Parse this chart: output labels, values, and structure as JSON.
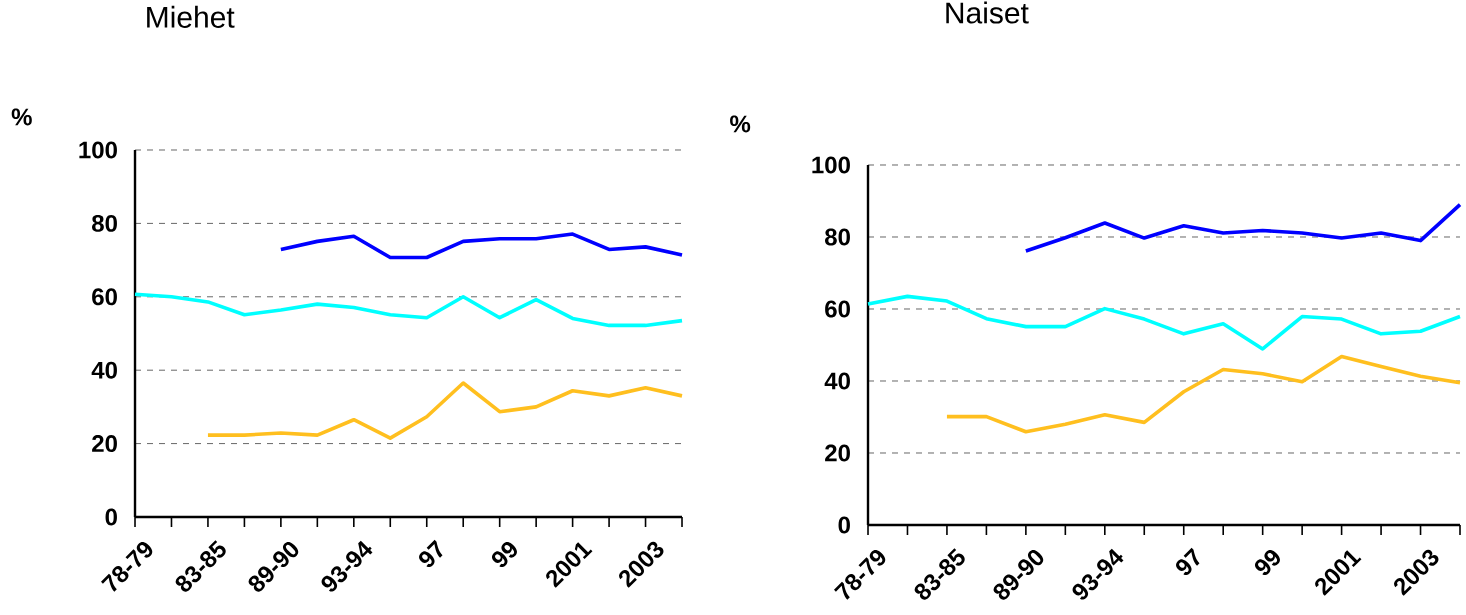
{
  "chart_data": [
    {
      "type": "line",
      "title": "Miehet",
      "ylabel": "%",
      "categories": [
        "78-79",
        null,
        "83-85",
        null,
        "89-90",
        null,
        "93-94",
        null,
        "97",
        null,
        "99",
        null,
        "2001",
        null,
        "2003",
        null
      ],
      "ylim": [
        0,
        100
      ],
      "yticks": [
        0,
        20,
        40,
        60,
        80,
        100
      ],
      "grid": "y",
      "series": [
        {
          "color": "#0000ff",
          "values": [
            null,
            null,
            null,
            null,
            72.9,
            75.1,
            76.5,
            70.7,
            70.7,
            75.1,
            75.8,
            75.8,
            77.1,
            72.9,
            73.6,
            71.4
          ]
        },
        {
          "color": "#00ffff",
          "values": [
            60.7,
            60.0,
            58.6,
            55.1,
            56.4,
            58.0,
            57.1,
            55.1,
            54.3,
            60.0,
            54.3,
            59.2,
            54.1,
            52.2,
            52.2,
            53.5
          ]
        },
        {
          "color": "#ffbf1f",
          "values": [
            null,
            null,
            22.3,
            22.3,
            22.9,
            22.3,
            26.5,
            21.5,
            27.3,
            36.5,
            28.7,
            30.0,
            34.4,
            33.0,
            35.2,
            33.0
          ]
        }
      ]
    },
    {
      "type": "line",
      "title": "Naiset",
      "ylabel": "%",
      "categories": [
        "78-79",
        null,
        "83-85",
        null,
        "89-90",
        null,
        "93-94",
        null,
        "97",
        null,
        "99",
        null,
        "2001",
        null,
        "2003",
        null
      ],
      "ylim": [
        0,
        100
      ],
      "yticks": [
        0,
        20,
        40,
        60,
        80,
        100
      ],
      "grid": "y",
      "series": [
        {
          "color": "#0000ff",
          "values": [
            null,
            null,
            null,
            null,
            76.1,
            79.8,
            83.9,
            79.7,
            83.1,
            81.1,
            81.8,
            81.1,
            79.7,
            81.1,
            79.0,
            89.0
          ]
        },
        {
          "color": "#00ffff",
          "values": [
            61.4,
            63.5,
            62.2,
            57.3,
            55.1,
            55.1,
            60.1,
            57.2,
            53.1,
            55.9,
            48.9,
            57.9,
            57.2,
            53.1,
            53.8,
            57.9
          ]
        },
        {
          "color": "#ffbf1f",
          "values": [
            null,
            null,
            30.1,
            30.1,
            25.9,
            28.0,
            30.6,
            28.5,
            37.0,
            43.2,
            42.0,
            39.8,
            46.8,
            44.0,
            41.3,
            39.5
          ]
        }
      ]
    }
  ]
}
